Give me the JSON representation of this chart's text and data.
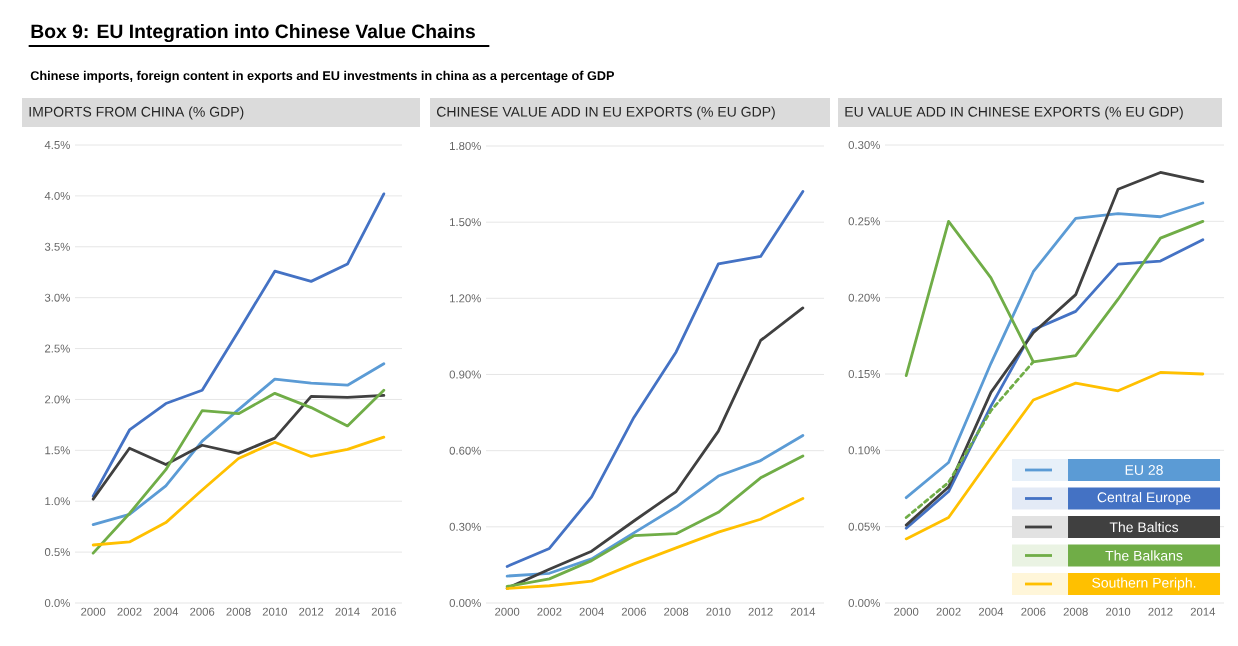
{
  "chart_data": [
    {
      "type": "line",
      "title": "IMPORTS FROM CHINA (% GDP)",
      "annotations": [
        "Box 9: EU Integration into Chinese Value Chains",
        "Chinese imports, foreign content in exports and EU investments in china as a percentage of GDP"
      ],
      "grid": "y",
      "categories": [
        "2000",
        "2002",
        "2004",
        "2006",
        "2008",
        "2010",
        "2012",
        "2014",
        "2016"
      ],
      "ylim": [
        0,
        4.5
      ],
      "yticks": [
        {
          "value": 0,
          "label": "0.0%"
        },
        {
          "value": 0.5,
          "label": "0.5%"
        },
        {
          "value": 1,
          "label": "1.0%"
        },
        {
          "value": 1.5,
          "label": "1.5%"
        },
        {
          "value": 2,
          "label": "2.0%"
        },
        {
          "value": 2.5,
          "label": "2.5%"
        },
        {
          "value": 3,
          "label": "3.0%"
        },
        {
          "value": 3.5,
          "label": "3.5%"
        },
        {
          "value": 4,
          "label": "4.0%"
        },
        {
          "value": 4.5,
          "label": "4.5%"
        }
      ],
      "series": [
        {
          "color": "#5b9bd5",
          "values": [
            0.77,
            0.87,
            1.15,
            1.59,
            1.9,
            2.2,
            2.16,
            2.14,
            2.35
          ]
        },
        {
          "color": "#4472c4",
          "values": [
            1.05,
            1.7,
            1.96,
            2.09,
            2.67,
            3.26,
            3.16,
            3.33,
            4.02
          ]
        },
        {
          "color": "#404040",
          "values": [
            1.02,
            1.52,
            1.36,
            1.55,
            1.47,
            1.62,
            2.03,
            2.02,
            2.04
          ]
        },
        {
          "color": "#70ad47",
          "values": [
            0.49,
            0.88,
            1.31,
            1.89,
            1.86,
            2.06,
            1.92,
            1.74,
            2.09
          ]
        },
        {
          "color": "#ffc000",
          "values": [
            0.57,
            0.6,
            0.79,
            1.11,
            1.42,
            1.58,
            1.44,
            1.51,
            1.63
          ]
        }
      ]
    },
    {
      "type": "line",
      "title": "CHINESE VALUE ADD IN EU EXPORTS (% EU GDP)",
      "grid": "y",
      "categories": [
        "2000",
        "2002",
        "2004",
        "2006",
        "2008",
        "2010",
        "2012",
        "2014"
      ],
      "ylim": [
        0,
        1.8
      ],
      "yticks": [
        {
          "value": 0,
          "label": "0.00%"
        },
        {
          "value": 0.3,
          "label": "0.30%"
        },
        {
          "value": 0.6,
          "label": "0.60%"
        },
        {
          "value": 0.9,
          "label": "0.90%"
        },
        {
          "value": 1.2,
          "label": "1.20%"
        },
        {
          "value": 1.5,
          "label": "1.50%"
        },
        {
          "value": 1.8,
          "label": "1.80%"
        }
      ],
      "series": [
        {
          "color": "#5b9bd5",
          "values": [
            0.106,
            0.117,
            0.174,
            0.276,
            0.378,
            0.5,
            0.561,
            0.66
          ]
        },
        {
          "color": "#4472c4",
          "values": [
            0.144,
            0.215,
            0.418,
            0.731,
            0.989,
            1.336,
            1.365,
            1.621
          ]
        },
        {
          "color": "#404040",
          "values": [
            0.058,
            0.133,
            0.204,
            0.323,
            0.439,
            0.677,
            1.034,
            1.162
          ]
        },
        {
          "color": "#70ad47",
          "values": [
            0.065,
            0.095,
            0.167,
            0.265,
            0.273,
            0.357,
            0.493,
            0.579
          ]
        },
        {
          "color": "#ffc000",
          "values": [
            0.057,
            0.068,
            0.086,
            0.154,
            0.217,
            0.279,
            0.33,
            0.412
          ]
        }
      ]
    },
    {
      "type": "line",
      "title": "EU VALUE ADD IN CHINESE EXPORTS (% EU GDP)",
      "grid": "y",
      "legend": "bottom right",
      "categories": [
        "2000",
        "2002",
        "2004",
        "2006",
        "2008",
        "2010",
        "2012",
        "2014"
      ],
      "ylim": [
        0,
        0.3
      ],
      "yticks": [
        {
          "value": 0,
          "label": "0.00%"
        },
        {
          "value": 0.05,
          "label": "0.05%"
        },
        {
          "value": 0.1,
          "label": "0.10%"
        },
        {
          "value": 0.15,
          "label": "0.15%"
        },
        {
          "value": 0.2,
          "label": "0.20%"
        },
        {
          "value": 0.25,
          "label": "0.25%"
        },
        {
          "value": 0.3,
          "label": "0.30%"
        }
      ],
      "series": [
        {
          "name": "EU 28",
          "color": "#5b9bd5",
          "values": [
            0.069,
            0.092,
            0.157,
            0.217,
            0.252,
            0.255,
            0.253,
            0.262
          ]
        },
        {
          "name": "Central Europe",
          "color": "#4472c4",
          "values": [
            0.049,
            0.073,
            0.129,
            0.179,
            0.191,
            0.222,
            0.224,
            0.238
          ]
        },
        {
          "name": "The Baltics",
          "color": "#404040",
          "values": [
            0.051,
            0.076,
            0.138,
            0.177,
            0.202,
            0.271,
            0.282,
            0.276
          ]
        },
        {
          "name": "The Balkans",
          "color": "#70ad47",
          "values": [
            0.149,
            0.25,
            0.213,
            0.158,
            0.162,
            0.199,
            0.239,
            0.25
          ]
        },
        {
          "name": "Southern Periph.",
          "color": "#ffc000",
          "values": [
            0.042,
            0.056,
            0.095,
            0.133,
            0.144,
            0.139,
            0.151,
            0.15
          ]
        },
        {
          "color": "#70ad47",
          "line_style": "dashed",
          "values": [
            0.056,
            0.079,
            0.126,
            0.158,
            null,
            null,
            null,
            null
          ]
        }
      ]
    }
  ]
}
